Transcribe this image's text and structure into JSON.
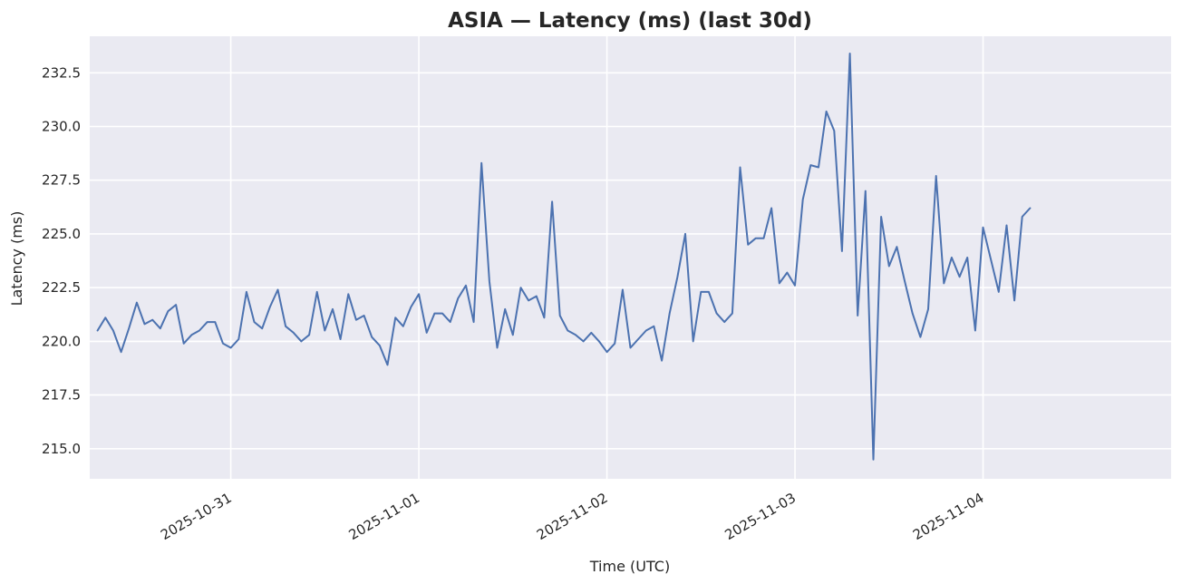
{
  "chart_data": {
    "type": "line",
    "title": "ASIA — Latency (ms) (last 30d)",
    "xlabel": "Time (UTC)",
    "ylabel": "Latency (ms)",
    "x_start": "2025-10-30T06:00:00Z",
    "x_end": "2025-11-05T00:00:00Z",
    "ylim": [
      213.6,
      234.2
    ],
    "y_ticks": [
      215.0,
      217.5,
      220.0,
      222.5,
      225.0,
      227.5,
      230.0,
      232.5
    ],
    "y_tick_labels": [
      "215.0",
      "217.5",
      "220.0",
      "222.5",
      "225.0",
      "227.5",
      "230.0",
      "232.5"
    ],
    "x_ticks": [
      "2025-10-31",
      "2025-11-01",
      "2025-11-02",
      "2025-11-03",
      "2025-11-04"
    ],
    "x_tick_labels": [
      "2025-10-31",
      "2025-11-01",
      "2025-11-02",
      "2025-11-03",
      "2025-11-04"
    ],
    "grid": true,
    "background": "#eaeaf2",
    "series": [
      {
        "color": "#4c72b0",
        "x_start": "2025-10-30T07:00:00Z",
        "x_step_hours": 1,
        "values": [
          220.5,
          221.1,
          220.5,
          219.5,
          220.6,
          221.8,
          220.8,
          221.0,
          220.6,
          221.4,
          221.7,
          219.9,
          220.3,
          220.5,
          220.9,
          220.9,
          219.9,
          219.7,
          220.1,
          222.3,
          220.9,
          220.6,
          221.6,
          222.4,
          220.7,
          220.4,
          220.0,
          220.3,
          222.3,
          220.5,
          221.5,
          220.1,
          222.2,
          221.0,
          221.2,
          220.2,
          219.8,
          218.9,
          221.1,
          220.7,
          221.6,
          222.2,
          220.4,
          221.3,
          221.3,
          220.9,
          222.0,
          222.6,
          220.9,
          228.3,
          222.8,
          219.7,
          221.5,
          220.3,
          222.5,
          221.9,
          222.1,
          221.1,
          226.5,
          221.2,
          220.5,
          220.3,
          220.0,
          220.4,
          220.0,
          219.5,
          219.9,
          222.4,
          219.7,
          220.1,
          220.5,
          220.7,
          219.1,
          221.3,
          223.0,
          225.0,
          220.0,
          222.3,
          222.3,
          221.3,
          220.9,
          221.3,
          228.1,
          224.5,
          224.8,
          224.8,
          226.2,
          222.7,
          223.2,
          222.6,
          226.6,
          228.2,
          228.1,
          230.7,
          229.8,
          224.2,
          233.4,
          221.2,
          227.0,
          214.5,
          225.8,
          223.5,
          224.4,
          222.8,
          221.3,
          220.2,
          221.5,
          227.7,
          222.7,
          223.9,
          223.0,
          223.9,
          220.5,
          225.3,
          223.8,
          222.3,
          225.4,
          221.9,
          225.8,
          226.2
        ]
      }
    ]
  }
}
